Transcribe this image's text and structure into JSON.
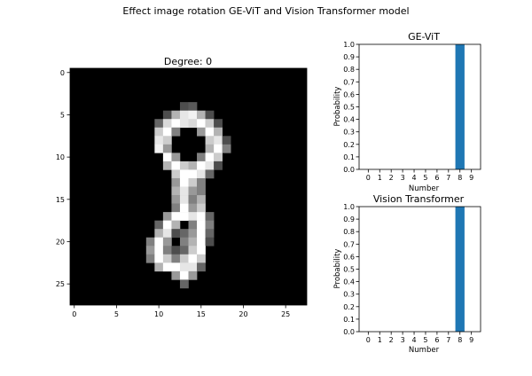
{
  "figure": {
    "suptitle": "Effect image rotation GE-ViT and Vision Transformer model"
  },
  "chart_data": [
    {
      "type": "heatmap",
      "title": "Degree: 0",
      "colormap": "gray",
      "x_ticks": [
        0,
        5,
        10,
        15,
        20,
        25
      ],
      "y_ticks": [
        0,
        5,
        10,
        15,
        20,
        25
      ],
      "xlim": [
        -0.5,
        27.5
      ],
      "ylim": [
        27.5,
        -0.5
      ],
      "grid": false,
      "rows": 28,
      "cols": 28,
      "pixels": [
        {
          "r": 4,
          "c": 13,
          "v": 0.3
        },
        {
          "r": 4,
          "c": 14,
          "v": 0.35
        },
        {
          "r": 5,
          "c": 11,
          "v": 0.3
        },
        {
          "r": 5,
          "c": 12,
          "v": 0.7
        },
        {
          "r": 5,
          "c": 13,
          "v": 0.9
        },
        {
          "r": 5,
          "c": 14,
          "v": 0.95
        },
        {
          "r": 5,
          "c": 15,
          "v": 0.7
        },
        {
          "r": 5,
          "c": 16,
          "v": 0.3
        },
        {
          "r": 6,
          "c": 10,
          "v": 0.4
        },
        {
          "r": 6,
          "c": 11,
          "v": 0.85
        },
        {
          "r": 6,
          "c": 12,
          "v": 1.0
        },
        {
          "r": 6,
          "c": 13,
          "v": 0.9
        },
        {
          "r": 6,
          "c": 14,
          "v": 0.85
        },
        {
          "r": 6,
          "c": 15,
          "v": 1.0
        },
        {
          "r": 6,
          "c": 16,
          "v": 0.8
        },
        {
          "r": 6,
          "c": 17,
          "v": 0.3
        },
        {
          "r": 7,
          "c": 10,
          "v": 0.8
        },
        {
          "r": 7,
          "c": 11,
          "v": 1.0
        },
        {
          "r": 7,
          "c": 12,
          "v": 0.5
        },
        {
          "r": 7,
          "c": 15,
          "v": 0.6
        },
        {
          "r": 7,
          "c": 16,
          "v": 1.0
        },
        {
          "r": 7,
          "c": 17,
          "v": 0.7
        },
        {
          "r": 8,
          "c": 10,
          "v": 0.9
        },
        {
          "r": 8,
          "c": 11,
          "v": 0.8
        },
        {
          "r": 8,
          "c": 16,
          "v": 0.8
        },
        {
          "r": 8,
          "c": 17,
          "v": 0.9
        },
        {
          "r": 8,
          "c": 18,
          "v": 0.3
        },
        {
          "r": 9,
          "c": 10,
          "v": 0.95
        },
        {
          "r": 9,
          "c": 11,
          "v": 0.6
        },
        {
          "r": 9,
          "c": 16,
          "v": 0.7
        },
        {
          "r": 9,
          "c": 17,
          "v": 1.0
        },
        {
          "r": 9,
          "c": 18,
          "v": 0.5
        },
        {
          "r": 10,
          "c": 11,
          "v": 1.0
        },
        {
          "r": 10,
          "c": 12,
          "v": 0.6
        },
        {
          "r": 10,
          "c": 15,
          "v": 0.5
        },
        {
          "r": 10,
          "c": 16,
          "v": 1.0
        },
        {
          "r": 10,
          "c": 17,
          "v": 0.8
        },
        {
          "r": 11,
          "c": 11,
          "v": 0.7
        },
        {
          "r": 11,
          "c": 12,
          "v": 1.0
        },
        {
          "r": 11,
          "c": 13,
          "v": 0.8
        },
        {
          "r": 11,
          "c": 14,
          "v": 0.7
        },
        {
          "r": 11,
          "c": 15,
          "v": 1.0
        },
        {
          "r": 11,
          "c": 16,
          "v": 0.9
        },
        {
          "r": 11,
          "c": 17,
          "v": 0.3
        },
        {
          "r": 12,
          "c": 12,
          "v": 0.8
        },
        {
          "r": 12,
          "c": 13,
          "v": 1.0
        },
        {
          "r": 12,
          "c": 14,
          "v": 1.0
        },
        {
          "r": 12,
          "c": 15,
          "v": 0.9
        },
        {
          "r": 12,
          "c": 16,
          "v": 0.4
        },
        {
          "r": 13,
          "c": 12,
          "v": 0.6
        },
        {
          "r": 13,
          "c": 13,
          "v": 1.0
        },
        {
          "r": 13,
          "c": 14,
          "v": 0.8
        },
        {
          "r": 13,
          "c": 15,
          "v": 0.5
        },
        {
          "r": 14,
          "c": 12,
          "v": 0.7
        },
        {
          "r": 14,
          "c": 13,
          "v": 0.9
        },
        {
          "r": 14,
          "c": 14,
          "v": 0.6
        },
        {
          "r": 14,
          "c": 15,
          "v": 0.5
        },
        {
          "r": 15,
          "c": 12,
          "v": 0.6
        },
        {
          "r": 15,
          "c": 13,
          "v": 0.9
        },
        {
          "r": 15,
          "c": 14,
          "v": 0.5
        },
        {
          "r": 15,
          "c": 15,
          "v": 0.7
        },
        {
          "r": 16,
          "c": 12,
          "v": 0.5
        },
        {
          "r": 16,
          "c": 13,
          "v": 1.0
        },
        {
          "r": 16,
          "c": 14,
          "v": 0.6
        },
        {
          "r": 16,
          "c": 15,
          "v": 0.8
        },
        {
          "r": 17,
          "c": 11,
          "v": 0.6
        },
        {
          "r": 17,
          "c": 12,
          "v": 1.0
        },
        {
          "r": 17,
          "c": 13,
          "v": 1.0
        },
        {
          "r": 17,
          "c": 14,
          "v": 0.9
        },
        {
          "r": 17,
          "c": 15,
          "v": 1.0
        },
        {
          "r": 17,
          "c": 16,
          "v": 0.4
        },
        {
          "r": 18,
          "c": 10,
          "v": 0.4
        },
        {
          "r": 18,
          "c": 11,
          "v": 1.0
        },
        {
          "r": 18,
          "c": 12,
          "v": 0.7
        },
        {
          "r": 18,
          "c": 14,
          "v": 0.5
        },
        {
          "r": 18,
          "c": 15,
          "v": 1.0
        },
        {
          "r": 18,
          "c": 16,
          "v": 0.5
        },
        {
          "r": 19,
          "c": 10,
          "v": 0.7
        },
        {
          "r": 19,
          "c": 11,
          "v": 0.9
        },
        {
          "r": 19,
          "c": 12,
          "v": 0.3
        },
        {
          "r": 19,
          "c": 13,
          "v": 0.4
        },
        {
          "r": 19,
          "c": 14,
          "v": 0.6
        },
        {
          "r": 19,
          "c": 15,
          "v": 1.0
        },
        {
          "r": 19,
          "c": 16,
          "v": 0.4
        },
        {
          "r": 20,
          "c": 9,
          "v": 0.5
        },
        {
          "r": 20,
          "c": 10,
          "v": 1.0
        },
        {
          "r": 20,
          "c": 11,
          "v": 0.6
        },
        {
          "r": 20,
          "c": 13,
          "v": 0.5
        },
        {
          "r": 20,
          "c": 14,
          "v": 0.7
        },
        {
          "r": 20,
          "c": 15,
          "v": 1.0
        },
        {
          "r": 20,
          "c": 16,
          "v": 0.3
        },
        {
          "r": 21,
          "c": 9,
          "v": 0.6
        },
        {
          "r": 21,
          "c": 10,
          "v": 1.0
        },
        {
          "r": 21,
          "c": 11,
          "v": 0.5
        },
        {
          "r": 21,
          "c": 12,
          "v": 0.3
        },
        {
          "r": 21,
          "c": 13,
          "v": 0.4
        },
        {
          "r": 21,
          "c": 14,
          "v": 0.8
        },
        {
          "r": 21,
          "c": 15,
          "v": 1.0
        },
        {
          "r": 22,
          "c": 9,
          "v": 0.5
        },
        {
          "r": 22,
          "c": 10,
          "v": 1.0
        },
        {
          "r": 22,
          "c": 11,
          "v": 0.8
        },
        {
          "r": 22,
          "c": 12,
          "v": 0.5
        },
        {
          "r": 22,
          "c": 13,
          "v": 0.8
        },
        {
          "r": 22,
          "c": 14,
          "v": 1.0
        },
        {
          "r": 22,
          "c": 15,
          "v": 0.8
        },
        {
          "r": 23,
          "c": 10,
          "v": 0.7
        },
        {
          "r": 23,
          "c": 11,
          "v": 1.0
        },
        {
          "r": 23,
          "c": 12,
          "v": 1.0
        },
        {
          "r": 23,
          "c": 13,
          "v": 0.9
        },
        {
          "r": 23,
          "c": 14,
          "v": 0.9
        },
        {
          "r": 23,
          "c": 15,
          "v": 0.4
        },
        {
          "r": 24,
          "c": 12,
          "v": 0.6
        },
        {
          "r": 24,
          "c": 13,
          "v": 1.0
        },
        {
          "r": 24,
          "c": 14,
          "v": 0.6
        },
        {
          "r": 25,
          "c": 13,
          "v": 0.4
        }
      ]
    },
    {
      "type": "bar",
      "title": "GE-ViT",
      "categories": [
        "0",
        "1",
        "2",
        "3",
        "4",
        "5",
        "6",
        "7",
        "8",
        "9"
      ],
      "values": [
        0,
        0,
        0,
        0,
        0,
        0,
        0,
        0,
        1.0,
        0
      ],
      "xlabel": "Number",
      "ylabel": "Probability",
      "ylim": [
        0,
        1.0
      ],
      "y_ticks": [
        "0.0",
        "0.1",
        "0.2",
        "0.3",
        "0.4",
        "0.5",
        "0.6",
        "0.7",
        "0.8",
        "0.9",
        "1.0"
      ],
      "bar_color": "#1f77b4",
      "grid": false
    },
    {
      "type": "bar",
      "title": "Vision Transformer",
      "categories": [
        "0",
        "1",
        "2",
        "3",
        "4",
        "5",
        "6",
        "7",
        "8",
        "9"
      ],
      "values": [
        0,
        0,
        0,
        0,
        0,
        0,
        0,
        0,
        1.0,
        0
      ],
      "xlabel": "Number",
      "ylabel": "Probability",
      "ylim": [
        0,
        1.0
      ],
      "y_ticks": [
        "0.0",
        "0.1",
        "0.2",
        "0.3",
        "0.4",
        "0.5",
        "0.6",
        "0.7",
        "0.8",
        "0.9",
        "1.0"
      ],
      "bar_color": "#1f77b4",
      "grid": false
    }
  ]
}
